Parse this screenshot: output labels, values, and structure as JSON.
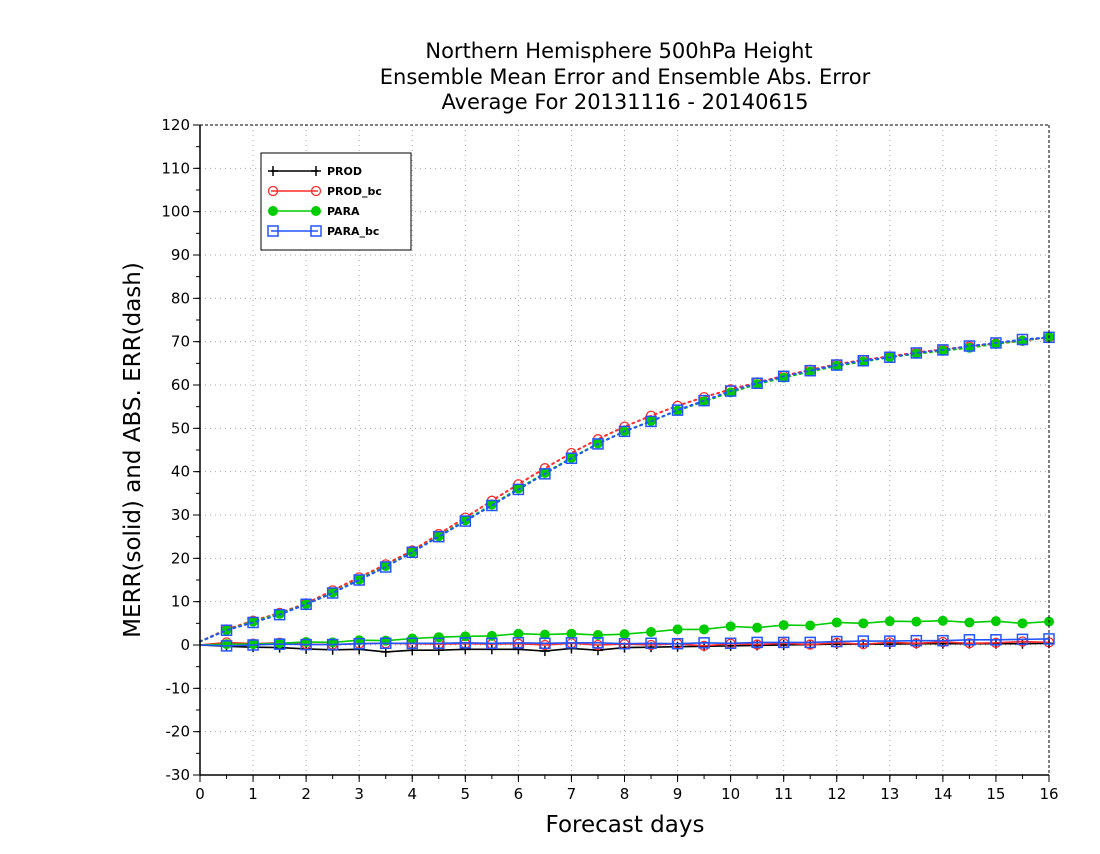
{
  "chart_data": {
    "type": "line",
    "title_lines": [
      "Northern Hemisphere 500hPa Height",
      "Ensemble Mean Error and Ensemble Abs. Error",
      "Average For 20131116 - 20140615"
    ],
    "xlabel": "Forecast days",
    "ylabel": "MERR(solid) and ABS. ERR(dash)",
    "xlim": [
      0,
      16
    ],
    "ylim": [
      -30,
      120
    ],
    "x_ticks": [
      0,
      1,
      2,
      3,
      4,
      5,
      6,
      7,
      8,
      9,
      10,
      11,
      12,
      13,
      14,
      15,
      16
    ],
    "y_ticks": [
      -30,
      -20,
      -10,
      0,
      10,
      20,
      30,
      40,
      50,
      60,
      70,
      80,
      90,
      100,
      110,
      120
    ],
    "x_tick_labels": [
      "0",
      "1",
      "2",
      "3",
      "4",
      "5",
      "6",
      "7",
      "8",
      "9",
      "10",
      "11",
      "12",
      "13",
      "14",
      "15",
      "16"
    ],
    "y_tick_labels": [
      "-30",
      "-20",
      "-10",
      "0",
      "10",
      "20",
      "30",
      "40",
      "50",
      "60",
      "70",
      "80",
      "90",
      "100",
      "110",
      "120"
    ],
    "grid": true,
    "legend_position": "top-left",
    "x": [
      0,
      0.5,
      1,
      1.5,
      2,
      2.5,
      3,
      3.5,
      4,
      4.5,
      5,
      5.5,
      6,
      6.5,
      7,
      7.5,
      8,
      8.5,
      9,
      9.5,
      10,
      10.5,
      11,
      11.5,
      12,
      12.5,
      13,
      13.5,
      14,
      14.5,
      15,
      15.5,
      16
    ],
    "series": [
      {
        "name": "PROD",
        "color": "#000000",
        "marker": "plus",
        "merr": [
          0,
          -0.3,
          -0.5,
          -0.6,
          -0.9,
          -1.1,
          -1.0,
          -1.6,
          -1.2,
          -1.2,
          -1.0,
          -1.0,
          -1.0,
          -1.4,
          -0.8,
          -1.2,
          -0.6,
          -0.5,
          -0.4,
          -0.3,
          -0.2,
          -0.1,
          0,
          0.1,
          0.2,
          0.2,
          0.2,
          0.3,
          0.3,
          0.3,
          0.3,
          0.3,
          0.4
        ],
        "abs_err": null
      },
      {
        "name": "PROD_bc",
        "color": "#ff2a2a",
        "marker": "circle",
        "merr": [
          0,
          0.6,
          0.3,
          0.5,
          0.2,
          0.1,
          0.3,
          0.4,
          0.3,
          0.2,
          0.3,
          0.2,
          0.3,
          0,
          0.4,
          0,
          0.2,
          0,
          0.3,
          -0.2,
          0.3,
          0.1,
          0.4,
          0.1,
          0.5,
          0.2,
          0.6,
          0.4,
          0.7,
          0.4,
          0.5,
          0.8,
          0.6
        ],
        "abs_err": [
          0.8,
          3.6,
          5.6,
          7.4,
          9.6,
          12.6,
          15.6,
          18.6,
          21.8,
          25.6,
          29.4,
          33.3,
          37.1,
          40.8,
          44.3,
          47.5,
          50.4,
          52.9,
          55.2,
          57.2,
          59.0,
          60.6,
          62.1,
          63.5,
          64.8,
          65.8,
          66.6,
          67.5,
          68.2,
          68.9,
          69.6,
          70.2,
          71.0
        ]
      },
      {
        "name": "PARA",
        "color": "#00cc00",
        "marker": "filled-circle",
        "merr": [
          0,
          0.2,
          0.2,
          0.4,
          0.7,
          0.6,
          1.1,
          1.0,
          1.5,
          1.8,
          2.0,
          2.1,
          2.6,
          2.4,
          2.6,
          2.3,
          2.5,
          3.0,
          3.6,
          3.6,
          4.3,
          4.0,
          4.6,
          4.5,
          5.2,
          5.0,
          5.5,
          5.4,
          5.6,
          5.2,
          5.5,
          5.0,
          5.4
        ],
        "abs_err": [
          0.8,
          3.4,
          5.4,
          7.2,
          9.4,
          12.1,
          15.1,
          18.2,
          21.4,
          25.1,
          28.8,
          32.4,
          36.1,
          39.7,
          43.2,
          46.5,
          49.3,
          51.7,
          54.1,
          56.2,
          58.3,
          60.2,
          61.7,
          63.1,
          64.4,
          65.4,
          66.4,
          67.2,
          67.9,
          68.6,
          69.5,
          70.2,
          71.1
        ]
      },
      {
        "name": "PARA_bc",
        "color": "#2255ff",
        "marker": "square",
        "merr": [
          0,
          -0.2,
          0,
          0.2,
          0.1,
          0.1,
          0.3,
          0.4,
          0.4,
          0.4,
          0.5,
          0.4,
          0.5,
          0.4,
          0.5,
          0.5,
          0.3,
          0.4,
          0.3,
          0.5,
          0.4,
          0.6,
          0.6,
          0.6,
          0.8,
          0.9,
          0.9,
          1.0,
          1.0,
          1.2,
          1.2,
          1.3,
          1.4
        ],
        "abs_err": [
          0.8,
          3.4,
          5.2,
          7.0,
          9.4,
          12.0,
          15.0,
          18.0,
          21.4,
          25.0,
          28.6,
          32.2,
          35.9,
          39.5,
          43.1,
          46.4,
          49.3,
          51.6,
          54.2,
          56.4,
          58.6,
          60.4,
          62.0,
          63.3,
          64.6,
          65.6,
          66.4,
          67.4,
          68.1,
          69.0,
          69.7,
          70.5,
          71.0
        ]
      }
    ]
  }
}
